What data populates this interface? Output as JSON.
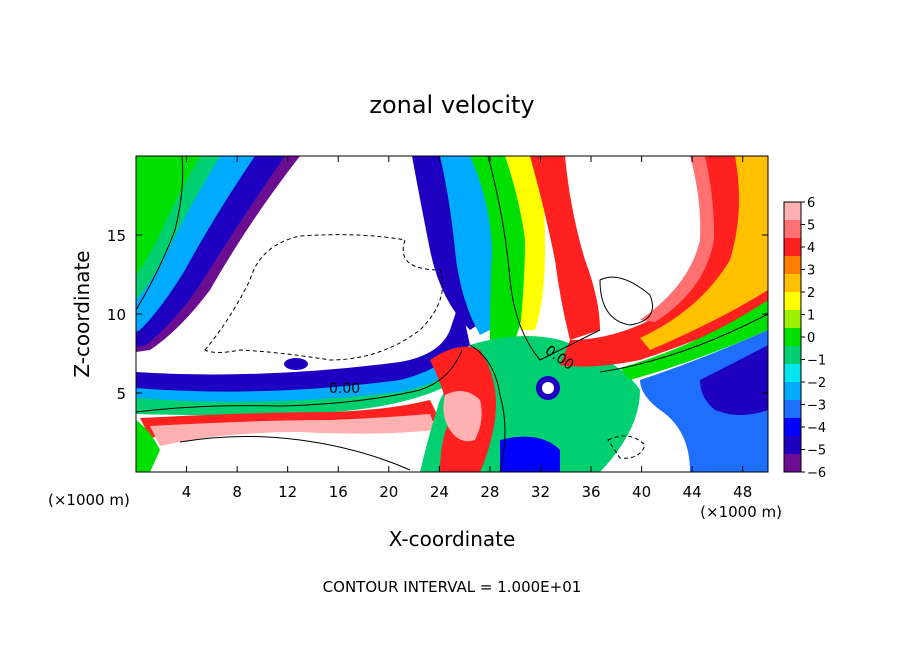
{
  "chart_data": {
    "type": "heatmap",
    "title": "zonal velocity",
    "xlabel": "X-coordinate",
    "ylabel": "Z-coordinate",
    "x_units_left": "(×1000 m)",
    "x_units_right": "(×1000 m)",
    "xlim": [
      0,
      50
    ],
    "ylim": [
      0,
      20
    ],
    "xticks": [
      4,
      8,
      12,
      16,
      20,
      24,
      28,
      32,
      36,
      40,
      44,
      48
    ],
    "yticks": [
      5,
      10,
      15
    ],
    "colorbar": {
      "ticks": [
        6,
        5,
        4,
        3,
        2,
        1,
        0,
        -1,
        -2,
        -3,
        -4,
        -5,
        -6
      ],
      "tick_labels": [
        "6",
        "5",
        "4",
        "3",
        "2",
        "1",
        "0",
        "−1",
        "−2",
        "−3",
        "−4",
        "−5",
        "−6"
      ],
      "range": [
        -6,
        6
      ]
    },
    "contour_labels": [
      {
        "text": "0.00",
        "x": 16.5,
        "z": 5.0
      },
      {
        "text": "0.00",
        "x": 33.3,
        "z": 7.0
      }
    ],
    "footnote": "CONTOUR INTERVAL = 1.000E+01",
    "palette": [
      "#6a0d91",
      "#1e00c0",
      "#0000ff",
      "#1f6fff",
      "#00aaff",
      "#00e5ee",
      "#00d070",
      "#00e000",
      "#9cf000",
      "#ffff00",
      "#ffc000",
      "#ff8000",
      "#ff2020",
      "#ff7070",
      "#ffb0b0"
    ]
  }
}
